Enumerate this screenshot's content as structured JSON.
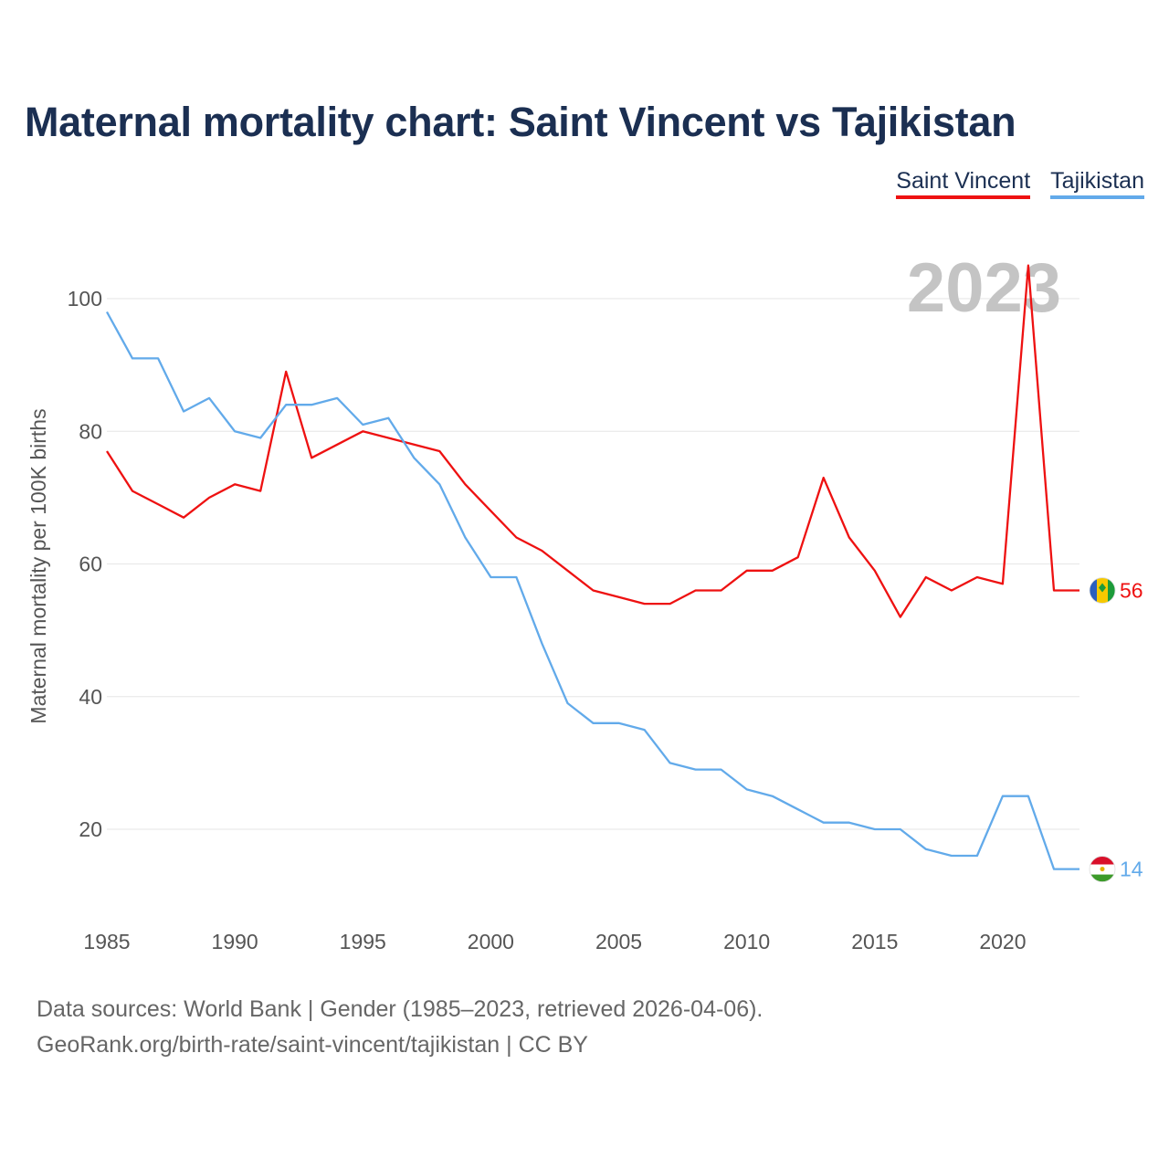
{
  "chart_data": {
    "type": "line",
    "title": "Maternal mortality chart: Saint Vincent vs Tajikistan",
    "xlabel": "",
    "ylabel": "Maternal mortality per 100K births",
    "xlim": [
      1985,
      2023
    ],
    "ylim": [
      8,
      110
    ],
    "x_ticks": [
      1985,
      1990,
      1995,
      2000,
      2005,
      2010,
      2015,
      2020
    ],
    "y_ticks": [
      20,
      40,
      60,
      80,
      100
    ],
    "grid": true,
    "current_year": "2023",
    "x": [
      1985,
      1986,
      1987,
      1988,
      1989,
      1990,
      1991,
      1992,
      1993,
      1994,
      1995,
      1996,
      1997,
      1998,
      1999,
      2000,
      2001,
      2002,
      2003,
      2004,
      2005,
      2006,
      2007,
      2008,
      2009,
      2010,
      2011,
      2012,
      2013,
      2014,
      2015,
      2016,
      2017,
      2018,
      2019,
      2020,
      2021,
      2022,
      2023
    ],
    "series": [
      {
        "name": "Saint Vincent",
        "color": "#ee1111",
        "values": [
          77,
          71,
          69,
          67,
          70,
          72,
          71,
          89,
          76,
          78,
          80,
          79,
          78,
          77,
          72,
          68,
          64,
          62,
          59,
          56,
          55,
          54,
          54,
          56,
          56,
          59,
          59,
          61,
          73,
          64,
          59,
          52,
          58,
          56,
          58,
          57,
          105,
          56,
          56
        ],
        "end_label": "56"
      },
      {
        "name": "Tajikistan",
        "color": "#62aaea",
        "values": [
          98,
          91,
          91,
          83,
          85,
          80,
          79,
          84,
          84,
          85,
          81,
          82,
          76,
          72,
          64,
          58,
          58,
          48,
          39,
          36,
          36,
          35,
          30,
          29,
          29,
          26,
          25,
          23,
          21,
          21,
          20,
          20,
          17,
          16,
          16,
          25,
          25,
          14,
          14
        ],
        "end_label": "14"
      }
    ]
  },
  "legend": {
    "items": [
      {
        "label": "Saint Vincent",
        "color": "#ee1111"
      },
      {
        "label": "Tajikistan",
        "color": "#62aaea"
      }
    ]
  },
  "footer": {
    "source_line": "Data sources: World Bank | Gender (1985–2023, retrieved 2026-04-06).",
    "credit_line": "GeoRank.org/birth-rate/saint-vincent/tajikistan | CC BY"
  }
}
